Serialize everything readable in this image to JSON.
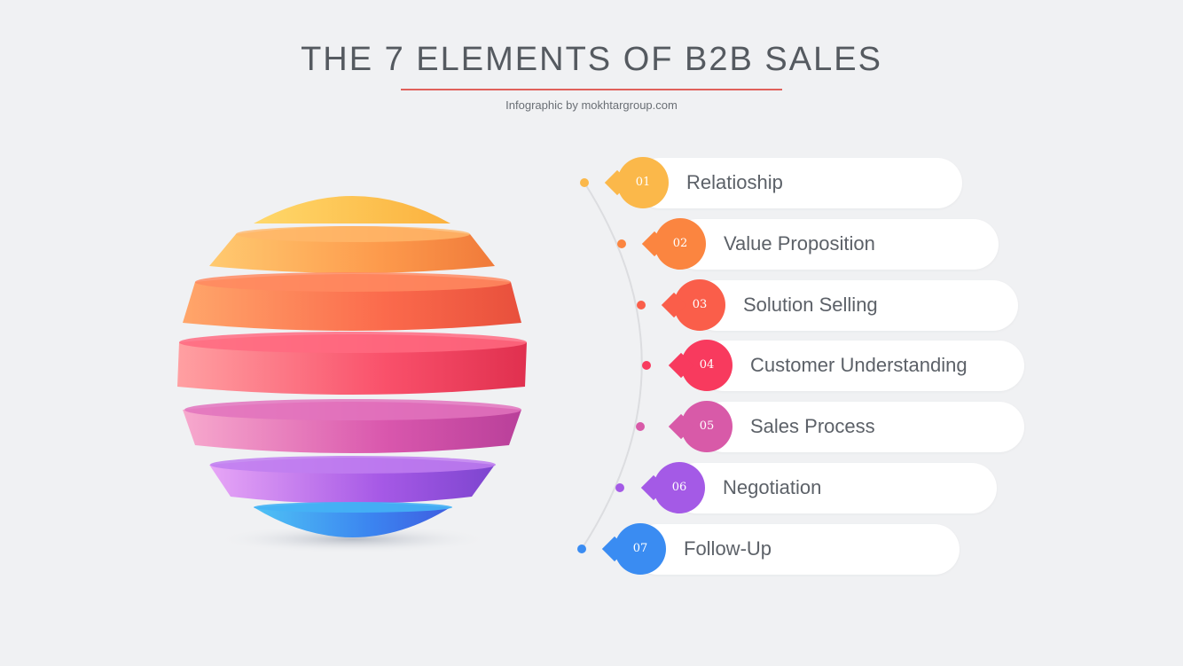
{
  "header": {
    "title": "THE 7 ELEMENTS OF B2B SALES",
    "subtitle": "Infographic by mokhtargroup.com"
  },
  "colors": {
    "accent_line": "#e0605a",
    "pill_background": "#ffffff",
    "rail": "#dcdde0"
  },
  "items": [
    {
      "num": "01",
      "label": "Relatioship",
      "color": "#fbb84a"
    },
    {
      "num": "02",
      "label": "Value Proposition",
      "color": "#fb8540"
    },
    {
      "num": "03",
      "label": "Solution Selling",
      "color": "#fa5e4a"
    },
    {
      "num": "04",
      "label": "Customer Understanding",
      "color": "#f83a5e"
    },
    {
      "num": "05",
      "label": "Sales Process",
      "color": "#d85aa8"
    },
    {
      "num": "06",
      "label": "Negotiation",
      "color": "#a45ae6"
    },
    {
      "num": "07",
      "label": "Follow-Up",
      "color": "#3a8cf2"
    }
  ]
}
